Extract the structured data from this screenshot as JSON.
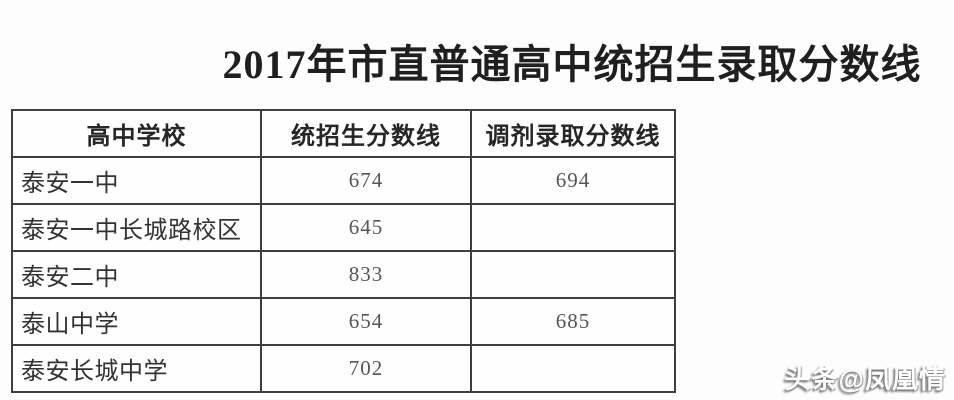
{
  "page": {
    "title": "2017年市直普通高中统招生录取分数线",
    "watermark": "头条@凤凰情"
  },
  "table": {
    "headers": [
      "高中学校",
      "统招生分数线",
      "调剂录取分数线"
    ],
    "rows": [
      {
        "school": "泰安一中",
        "unified": "674",
        "adjust": "694"
      },
      {
        "school": "泰安一中长城路校区",
        "unified": "645",
        "adjust": ""
      },
      {
        "school": "泰安二中",
        "unified": "833",
        "adjust": ""
      },
      {
        "school": "泰山中学",
        "unified": "654",
        "adjust": "685"
      },
      {
        "school": "泰安长城中学",
        "unified": "702",
        "adjust": ""
      }
    ]
  },
  "chart_data": {
    "type": "table",
    "title": "2017年市直普通高中统招生录取分数线",
    "columns": [
      "高中学校",
      "统招生分数线",
      "调剂录取分数线"
    ],
    "rows": [
      [
        "泰安一中",
        674,
        694
      ],
      [
        "泰安一中长城路校区",
        645,
        null
      ],
      [
        "泰安二中",
        833,
        null
      ],
      [
        "泰山中学",
        654,
        685
      ],
      [
        "泰安长城中学",
        702,
        null
      ]
    ]
  }
}
